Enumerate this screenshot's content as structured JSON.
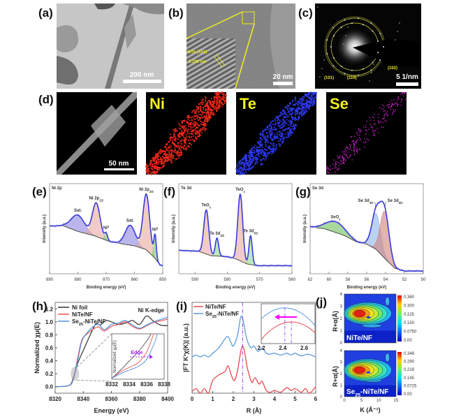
{
  "panels": {
    "a": {
      "label": "(a)",
      "scale_bar": "200 nm"
    },
    "b": {
      "label": "(b)",
      "scale_bar": "20 nm",
      "lattice_label": "NiTe (101)",
      "d_spacing": "0.299 nm"
    },
    "c": {
      "label": "(c)",
      "scale_bar": "5 1/nm",
      "rings": [
        "(101)",
        "(110)",
        "(102)"
      ]
    },
    "d": {
      "label": "(d)",
      "scale_bar": "50 nm",
      "maps": [
        {
          "element": "Ni",
          "color": "#ff2a1a"
        },
        {
          "element": "Te",
          "color": "#2f3cff"
        },
        {
          "element": "Se",
          "color": "#c81ec8"
        }
      ]
    }
  },
  "chart_data": [
    {
      "panel": "(e)",
      "type": "area",
      "title": "Ni 2p",
      "xlabel": "Binding energy (eV)",
      "ylabel": "Intensity (a.u.)",
      "xlim": [
        890,
        850
      ],
      "ylim": [
        0,
        1
      ],
      "xticks": [
        "890",
        "880",
        "870",
        "860",
        "850"
      ],
      "envelope_color": "#3b3bdc",
      "background": [
        [
          890,
          0.53
        ],
        [
          885,
          0.53
        ],
        [
          880,
          0.47
        ],
        [
          874,
          0.42
        ],
        [
          869,
          0.36
        ],
        [
          864,
          0.33
        ],
        [
          860,
          0.31
        ],
        [
          856,
          0.27
        ],
        [
          853,
          0.18
        ],
        [
          851,
          0.1
        ],
        [
          850,
          0.09
        ]
      ],
      "peaks": [
        {
          "label": "Sat.",
          "center": 880,
          "amplitude": 0.18,
          "fwhm": 5.5,
          "color": "#8c84e0"
        },
        {
          "label": "Ni 2p",
          "sub": "1/2",
          "center": 873.5,
          "amplitude": 0.37,
          "fwhm": 3.2,
          "color": "#e8aaa0"
        },
        {
          "label": "Ni",
          "sup": "0",
          "center": 870,
          "amplitude": 0.07,
          "fwhm": 1.2,
          "color": "#7ccb6a"
        },
        {
          "label": "Sat.",
          "center": 861.5,
          "amplitude": 0.22,
          "fwhm": 4.2,
          "color": "#8c84e0"
        },
        {
          "label": "Ni 2p",
          "sub": "3/2",
          "center": 855.8,
          "amplitude": 0.62,
          "fwhm": 2.8,
          "color": "#e8aaa0"
        },
        {
          "label": "Ni",
          "sup": "0",
          "center": 852.7,
          "amplitude": 0.25,
          "fwhm": 1.0,
          "color": "#7ccb6a"
        }
      ]
    },
    {
      "panel": "(f)",
      "type": "area",
      "title": "Te 3d",
      "xlabel": "Binding energy (eV)",
      "ylabel": "Intensity (a.u.)",
      "xlim": [
        595,
        560
      ],
      "ylim": [
        0,
        1
      ],
      "xticks": [
        "590",
        "580",
        "570",
        "560"
      ],
      "envelope_color": "#3b3bdc",
      "background": [
        [
          595,
          0.26
        ],
        [
          589,
          0.25
        ],
        [
          585,
          0.2
        ],
        [
          580,
          0.19
        ],
        [
          577,
          0.16
        ],
        [
          574,
          0.11
        ],
        [
          571,
          0.09
        ],
        [
          560,
          0.09
        ]
      ],
      "peaks": [
        {
          "label": "TeO",
          "sub": "x",
          "center": 586.5,
          "amplitude": 0.49,
          "fwhm": 1.8,
          "color": "#e8aaa0"
        },
        {
          "label": "Te 3d",
          "sub": "3/2",
          "center": 583.2,
          "amplitude": 0.2,
          "fwhm": 1.2,
          "color": "#8fdc8a"
        },
        {
          "label": "TeO",
          "sub": "x",
          "center": 576,
          "amplitude": 0.74,
          "fwhm": 1.8,
          "color": "#e8aaa0"
        },
        {
          "label": "Te 3d",
          "sub": "5/2",
          "center": 572.8,
          "amplitude": 0.32,
          "fwhm": 1.2,
          "color": "#8fdc8a"
        }
      ]
    },
    {
      "panel": "(g)",
      "type": "area",
      "title": "Se 3d",
      "xlabel": "Binding energy (eV)",
      "ylabel": "Intensity (a.u.)",
      "xlim": [
        62,
        50
      ],
      "ylim": [
        0,
        1
      ],
      "xticks": [
        "62",
        "60",
        "58",
        "56",
        "54",
        "52",
        "50"
      ],
      "envelope_color": "#3b3bdc",
      "background": [
        [
          62,
          0.52
        ],
        [
          60.5,
          0.5
        ],
        [
          58.5,
          0.43
        ],
        [
          57,
          0.35
        ],
        [
          56,
          0.33
        ],
        [
          55,
          0.27
        ],
        [
          54,
          0.16
        ],
        [
          53,
          0.06
        ],
        [
          52,
          0.03
        ],
        [
          50,
          0.03
        ]
      ],
      "peaks": [
        {
          "label": "SeO",
          "sub": "x",
          "center": 59.3,
          "amplitude": 0.12,
          "fwhm": 2.3,
          "color": "#6cbf5a"
        },
        {
          "label": "Se 3d",
          "sub": "3/2",
          "center": 55,
          "amplitude": 0.4,
          "fwhm": 1.1,
          "color": "#8fb4ea"
        },
        {
          "label": "Se 3d",
          "sub": "5/2",
          "center": 54.1,
          "amplitude": 0.52,
          "fwhm": 1.1,
          "color": "#d0807a"
        }
      ]
    },
    {
      "panel": "(h)",
      "type": "line",
      "annotation": "Ni K-edge",
      "xlabel": "Energy (eV)",
      "ylabel": "Normalized χμ(E)",
      "xlim": [
        8320,
        8400
      ],
      "ylim": [
        -0.1,
        1.3
      ],
      "xticks": [
        8320,
        8340,
        8360,
        8380,
        8400
      ],
      "yticks": [
        "0.0",
        "0.2",
        "0.4",
        "0.6",
        "0.8",
        "1.0",
        "1.2"
      ],
      "legend": "top-left",
      "series": [
        {
          "name_parts": [
            "Ni foil",
            "",
            ""
          ],
          "color": "#333333",
          "points": [
            [
              8320,
              0
            ],
            [
              8330,
              0.02
            ],
            [
              8333,
              0.15
            ],
            [
              8336,
              0.36
            ],
            [
              8340,
              0.56
            ],
            [
              8345,
              0.8
            ],
            [
              8349,
              0.97
            ],
            [
              8352,
              0.95
            ],
            [
              8356,
              1.02
            ],
            [
              8360,
              1.0
            ],
            [
              8365,
              0.96
            ],
            [
              8370,
              0.98
            ],
            [
              8375,
              1.02
            ],
            [
              8380,
              0.96
            ],
            [
              8385,
              1.09
            ],
            [
              8390,
              1.01
            ],
            [
              8395,
              0.95
            ],
            [
              8400,
              0.94
            ]
          ]
        },
        {
          "name_parts": [
            "NiTe/NF",
            "",
            ""
          ],
          "color": "#f05050",
          "points": [
            [
              8320,
              0
            ],
            [
              8330,
              0.02
            ],
            [
              8333,
              0.14
            ],
            [
              8336,
              0.44
            ],
            [
              8339,
              0.72
            ],
            [
              8343,
              0.82
            ],
            [
              8348,
              0.9
            ],
            [
              8351,
              0.92
            ],
            [
              8355,
              0.86
            ],
            [
              8360,
              0.93
            ],
            [
              8365,
              0.96
            ],
            [
              8370,
              1.0
            ],
            [
              8375,
              0.93
            ],
            [
              8380,
              0.89
            ],
            [
              8385,
              0.94
            ],
            [
              8390,
              0.99
            ],
            [
              8400,
              1.04
            ]
          ]
        },
        {
          "name_parts": [
            "Se",
            "25",
            "-NiTe/NF"
          ],
          "color": "#4a90e2",
          "points": [
            [
              8320,
              0
            ],
            [
              8330,
              0.02
            ],
            [
              8333,
              0.12
            ],
            [
              8336,
              0.4
            ],
            [
              8339,
              0.7
            ],
            [
              8343,
              0.84
            ],
            [
              8348,
              0.94
            ],
            [
              8351,
              0.96
            ],
            [
              8355,
              0.88
            ],
            [
              8360,
              0.96
            ],
            [
              8365,
              0.98
            ],
            [
              8370,
              1.02
            ],
            [
              8375,
              0.95
            ],
            [
              8380,
              0.9
            ],
            [
              8385,
              0.95
            ],
            [
              8390,
              1.0
            ],
            [
              8400,
              1.07
            ]
          ]
        }
      ],
      "inset": {
        "xlim": [
          8332,
          8338
        ],
        "ylim": [
          0,
          1
        ],
        "xticks": [
          8332,
          8334,
          8336,
          8338
        ],
        "ylabel": "Normalized χμ(E)",
        "annotation": "Edge",
        "series": [
          {
            "color": "#555555",
            "points": [
              [
                8332,
                0.02
              ],
              [
                8333,
                0.2
              ],
              [
                8334,
                0.4
              ],
              [
                8335,
                0.6
              ],
              [
                8336,
                0.84
              ],
              [
                8336.5,
                1
              ]
            ]
          },
          {
            "color": "#f05050",
            "points": [
              [
                8332,
                0.02
              ],
              [
                8333,
                0.16
              ],
              [
                8334,
                0.26
              ],
              [
                8335,
                0.36
              ],
              [
                8336,
                0.6
              ],
              [
                8336.8,
                1
              ]
            ]
          },
          {
            "color": "#4a90e2",
            "points": [
              [
                8332,
                0.02
              ],
              [
                8333,
                0.12
              ],
              [
                8334,
                0.2
              ],
              [
                8335,
                0.28
              ],
              [
                8336,
                0.44
              ],
              [
                8337,
                0.85
              ],
              [
                8337.2,
                1
              ]
            ]
          }
        ]
      }
    },
    {
      "panel": "(i)",
      "type": "line",
      "xlabel": "R (Å)",
      "ylabel": "|FT K²χ(K)| (a.u.)",
      "xlim": [
        0,
        6
      ],
      "ylim": [
        0,
        1
      ],
      "xticks": [
        "0",
        "1",
        "2",
        "3",
        "4",
        "5",
        "6"
      ],
      "legend": "top-left",
      "marker_line": 2.45,
      "series": [
        {
          "name_parts": [
            "NiTe/NF",
            "",
            ""
          ],
          "color": "#e84a4e",
          "points": [
            [
              0,
              0.02
            ],
            [
              0.2,
              0.05
            ],
            [
              0.4,
              0
            ],
            [
              0.6,
              0.05
            ],
            [
              0.8,
              0
            ],
            [
              1.0,
              0.14
            ],
            [
              1.3,
              0.2
            ],
            [
              1.6,
              0.24
            ],
            [
              1.75,
              0.3
            ],
            [
              1.9,
              0.2
            ],
            [
              2.05,
              0.14
            ],
            [
              2.2,
              0.24
            ],
            [
              2.45,
              0.52
            ],
            [
              2.7,
              0.26
            ],
            [
              2.9,
              0.12
            ],
            [
              3.05,
              0.17
            ],
            [
              3.25,
              0.1
            ],
            [
              3.4,
              0.13
            ],
            [
              3.6,
              0.03
            ],
            [
              3.8,
              0.01
            ],
            [
              4.0,
              0.03
            ],
            [
              4.3,
              0.01
            ],
            [
              4.6,
              0.06
            ],
            [
              4.8,
              0.03
            ],
            [
              5.0,
              0.05
            ],
            [
              5.3,
              0.01
            ],
            [
              5.5,
              0.05
            ],
            [
              5.7,
              0
            ],
            [
              6.0,
              0.07
            ]
          ]
        },
        {
          "name_parts": [
            "Se",
            "25",
            "-NiTe/NF"
          ],
          "color": "#5a9be0",
          "points": [
            [
              0,
              0.4
            ],
            [
              0.2,
              0.42
            ],
            [
              0.4,
              0.4
            ],
            [
              0.6,
              0.42
            ],
            [
              0.8,
              0.4
            ],
            [
              1.0,
              0.44
            ],
            [
              1.3,
              0.5
            ],
            [
              1.6,
              0.6
            ],
            [
              1.75,
              0.62
            ],
            [
              1.9,
              0.55
            ],
            [
              2.0,
              0.52
            ],
            [
              2.2,
              0.63
            ],
            [
              2.4,
              0.85
            ],
            [
              2.65,
              0.6
            ],
            [
              2.85,
              0.5
            ],
            [
              3.0,
              0.52
            ],
            [
              3.2,
              0.46
            ],
            [
              3.4,
              0.5
            ],
            [
              3.6,
              0.44
            ],
            [
              3.8,
              0.43
            ],
            [
              4.0,
              0.44
            ],
            [
              4.3,
              0.42
            ],
            [
              4.6,
              0.44
            ],
            [
              4.8,
              0.42
            ],
            [
              5.0,
              0.44
            ],
            [
              5.3,
              0.41
            ],
            [
              5.6,
              0.43
            ],
            [
              6.0,
              0.4
            ]
          ]
        }
      ],
      "inset": {
        "xlim": [
          2.2,
          2.7
        ],
        "xticks": [
          "2.2",
          "2.4",
          "2.6"
        ],
        "peak_blue": 2.42,
        "peak_red": 2.48
      }
    },
    {
      "panel": "(j)",
      "type": "heatmap",
      "xlabel": "K (Å⁻¹)",
      "ylabel": "R+α(Å)",
      "xlim": [
        0,
        15
      ],
      "ylim": [
        0,
        4
      ],
      "xticks": [
        "0",
        "5",
        "10",
        "15"
      ],
      "yticks": [
        "0",
        "1",
        "2",
        "3",
        "4"
      ],
      "maps": [
        {
          "label_parts": [
            "NiTe/NF",
            "",
            ""
          ],
          "max": 0.36,
          "peak_k": 4,
          "peak_r": 2.4,
          "colorbar_ticks": [
            "0.360",
            "0.300",
            "0.225",
            "0.150",
            "0.0750",
            "0.00"
          ]
        },
        {
          "label_parts": [
            "Se",
            "25",
            "-NiTe/NF"
          ],
          "max": 0.348,
          "peak_k": 4,
          "peak_r": 2.3,
          "colorbar_ticks": [
            "0.348",
            "0.290",
            "0.218",
            "0.145",
            "0.0725",
            "0.00"
          ]
        }
      ]
    }
  ]
}
